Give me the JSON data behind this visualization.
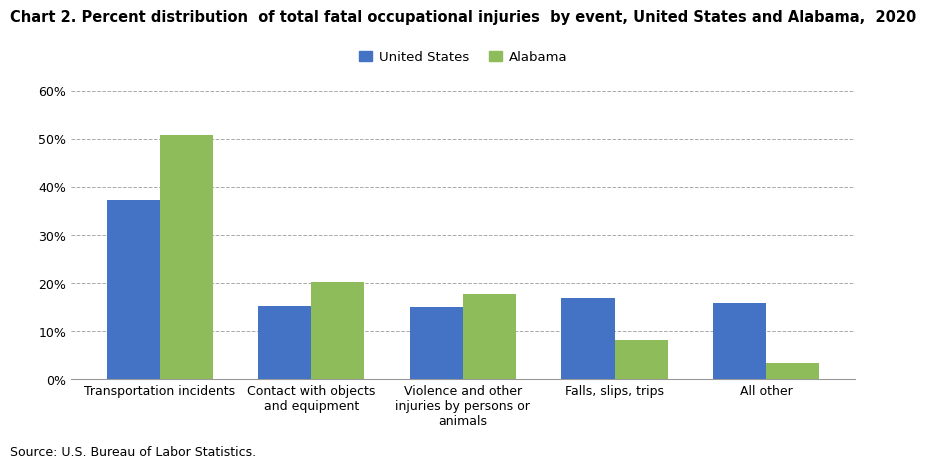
{
  "title": "Chart 2. Percent distribution  of total fatal occupational injuries  by event, United States and Alabama,  2020",
  "categories": [
    "Transportation incidents",
    "Contact with objects\nand equipment",
    "Violence and other\ninjuries by persons or\nanimals",
    "Falls, slips, trips",
    "All other"
  ],
  "us_values": [
    37.3,
    15.1,
    14.9,
    16.8,
    15.9
  ],
  "al_values": [
    50.7,
    20.2,
    17.6,
    8.2,
    3.3
  ],
  "us_color": "#4472C4",
  "al_color": "#8FBC5A",
  "us_label": "United States",
  "al_label": "Alabama",
  "ylim": [
    0,
    60
  ],
  "yticks": [
    0,
    10,
    20,
    30,
    40,
    50,
    60
  ],
  "ytick_labels": [
    "0%",
    "10%",
    "20%",
    "30%",
    "40%",
    "50%",
    "60%"
  ],
  "source_text": "Source: U.S. Bureau of Labor Statistics.",
  "bar_width": 0.35,
  "grid_color": "#AAAAAA",
  "background_color": "#FFFFFF",
  "title_fontsize": 10.5,
  "legend_fontsize": 9.5,
  "tick_fontsize": 9,
  "source_fontsize": 9
}
